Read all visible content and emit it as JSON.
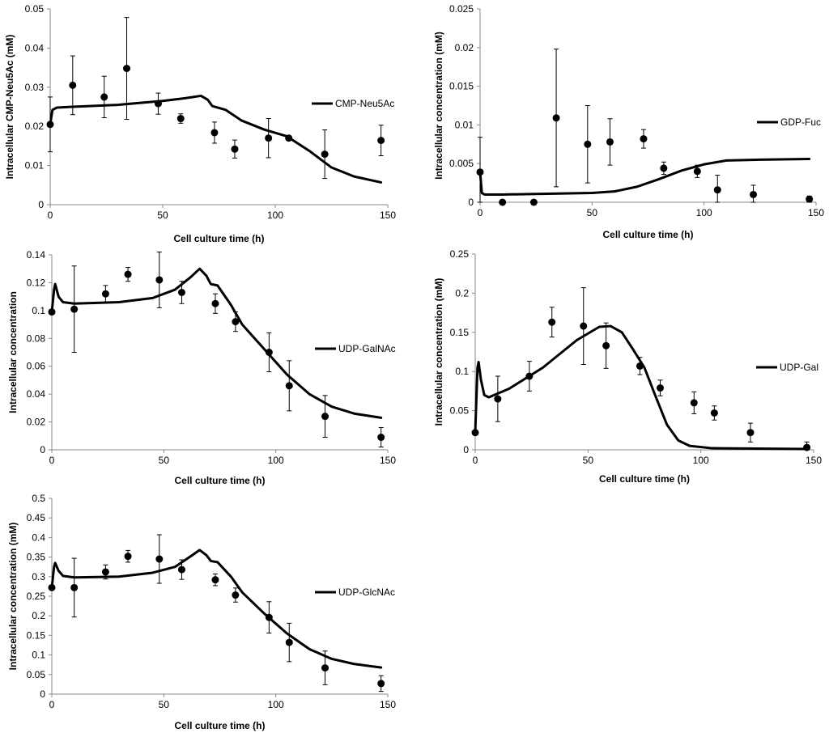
{
  "chart_data": [
    {
      "type": "scatter",
      "title": "",
      "xlabel": "Cell culture time (h)",
      "ylabel": "Intracellular CMP-Neu5Ac (mM)",
      "xlim": [
        0,
        150
      ],
      "ylim": [
        0,
        0.05
      ],
      "xticks": [
        0,
        50,
        100,
        150
      ],
      "xtick_labels": [
        "0",
        "50",
        "100",
        "150"
      ],
      "yticks": [
        0,
        0.01,
        0.02,
        0.03,
        0.04,
        0.05
      ],
      "ytick_labels": [
        "0",
        "0.01",
        "0.02",
        "0.03",
        "0.04",
        "0.05"
      ],
      "legend": "CMP-Neu5Ac",
      "legend_position": "right",
      "points": [
        {
          "x": 0,
          "y": 0.0205,
          "err": 0.007
        },
        {
          "x": 10,
          "y": 0.0305,
          "err": 0.0075
        },
        {
          "x": 24,
          "y": 0.0275,
          "err": 0.0053
        },
        {
          "x": 34,
          "y": 0.0348,
          "err": 0.013
        },
        {
          "x": 48,
          "y": 0.0258,
          "err": 0.0027
        },
        {
          "x": 58,
          "y": 0.022,
          "err": 0.0012
        },
        {
          "x": 73,
          "y": 0.0184,
          "err": 0.0027
        },
        {
          "x": 82,
          "y": 0.0142,
          "err": 0.0023
        },
        {
          "x": 97,
          "y": 0.017,
          "err": 0.005
        },
        {
          "x": 106,
          "y": 0.017,
          "err": 0.0005
        },
        {
          "x": 122,
          "y": 0.0129,
          "err": 0.0062
        },
        {
          "x": 147,
          "y": 0.0164,
          "err": 0.0039
        }
      ],
      "model": [
        [
          0,
          0.0205
        ],
        [
          1,
          0.0242
        ],
        [
          3,
          0.0248
        ],
        [
          10,
          0.025
        ],
        [
          30,
          0.0255
        ],
        [
          50,
          0.0265
        ],
        [
          60,
          0.0272
        ],
        [
          67,
          0.0278
        ],
        [
          70,
          0.0268
        ],
        [
          72,
          0.0252
        ],
        [
          78,
          0.0242
        ],
        [
          85,
          0.0215
        ],
        [
          95,
          0.0192
        ],
        [
          105,
          0.0175
        ],
        [
          115,
          0.0138
        ],
        [
          125,
          0.0095
        ],
        [
          135,
          0.0072
        ],
        [
          147,
          0.0057
        ]
      ]
    },
    {
      "type": "scatter",
      "title": "",
      "xlabel": "Cell culture time (h)",
      "ylabel": "Intracellular concentration (mM)",
      "xlim": [
        0,
        150
      ],
      "ylim": [
        0,
        0.025
      ],
      "xticks": [
        0,
        50,
        100,
        150
      ],
      "xtick_labels": [
        "0",
        "50",
        "100",
        "150"
      ],
      "yticks": [
        0,
        0.005,
        0.01,
        0.015,
        0.02,
        0.025
      ],
      "ytick_labels": [
        "0",
        "0.005",
        "0.01",
        "0.015",
        "0.02",
        "0.025"
      ],
      "legend": "GDP-Fuc",
      "legend_position": "right",
      "points": [
        {
          "x": 0,
          "y": 0.0039,
          "err": 0.0045
        },
        {
          "x": 10,
          "y": 0.0,
          "err": 0
        },
        {
          "x": 24,
          "y": 0.0,
          "err": 0
        },
        {
          "x": 34,
          "y": 0.0109,
          "err": 0.0089
        },
        {
          "x": 48,
          "y": 0.0075,
          "err": 0.005
        },
        {
          "x": 58,
          "y": 0.0078,
          "err": 0.003
        },
        {
          "x": 73,
          "y": 0.0082,
          "err": 0.0012
        },
        {
          "x": 82,
          "y": 0.0044,
          "err": 0.0008
        },
        {
          "x": 97,
          "y": 0.004,
          "err": 0.0008
        },
        {
          "x": 106,
          "y": 0.0016,
          "err": 0.0019
        },
        {
          "x": 122,
          "y": 0.001,
          "err": 0.0012
        },
        {
          "x": 147,
          "y": 0.0004,
          "err": 0.0004
        }
      ],
      "model": [
        [
          0,
          0.0039
        ],
        [
          0.8,
          0.0012
        ],
        [
          2,
          0.001
        ],
        [
          10,
          0.001
        ],
        [
          30,
          0.0011
        ],
        [
          50,
          0.0012
        ],
        [
          60,
          0.0014
        ],
        [
          70,
          0.002
        ],
        [
          80,
          0.003
        ],
        [
          90,
          0.0041
        ],
        [
          100,
          0.0049
        ],
        [
          110,
          0.0054
        ],
        [
          125,
          0.0055
        ],
        [
          147,
          0.0056
        ]
      ]
    },
    {
      "type": "scatter",
      "title": "",
      "xlabel": "Cell culture time (h)",
      "ylabel": "Intracellular concentration",
      "xlim": [
        0,
        150
      ],
      "ylim": [
        0,
        0.14
      ],
      "xticks": [
        0,
        50,
        100,
        150
      ],
      "xtick_labels": [
        "0",
        "50",
        "100",
        "150"
      ],
      "yticks": [
        0,
        0.02,
        0.04,
        0.06,
        0.08,
        0.1,
        0.12,
        0.14
      ],
      "ytick_labels": [
        "0",
        "0.02",
        "0.04",
        "0.06",
        "0.08",
        "0.1",
        "0.12",
        "0.14"
      ],
      "legend": "UDP-GalNAc",
      "legend_position": "right",
      "points": [
        {
          "x": 0,
          "y": 0.099,
          "err": 0
        },
        {
          "x": 10,
          "y": 0.101,
          "err": 0.031
        },
        {
          "x": 24,
          "y": 0.112,
          "err": 0.006
        },
        {
          "x": 34,
          "y": 0.126,
          "err": 0.005
        },
        {
          "x": 48,
          "y": 0.122,
          "err": 0.02
        },
        {
          "x": 58,
          "y": 0.113,
          "err": 0.008
        },
        {
          "x": 73,
          "y": 0.105,
          "err": 0.007
        },
        {
          "x": 82,
          "y": 0.092,
          "err": 0.007
        },
        {
          "x": 97,
          "y": 0.07,
          "err": 0.014
        },
        {
          "x": 106,
          "y": 0.046,
          "err": 0.018
        },
        {
          "x": 122,
          "y": 0.024,
          "err": 0.015
        },
        {
          "x": 147,
          "y": 0.009,
          "err": 0.007
        }
      ],
      "model": [
        [
          0,
          0.099
        ],
        [
          1,
          0.115
        ],
        [
          1.5,
          0.119
        ],
        [
          3,
          0.11
        ],
        [
          5,
          0.106
        ],
        [
          10,
          0.105
        ],
        [
          30,
          0.106
        ],
        [
          45,
          0.109
        ],
        [
          55,
          0.115
        ],
        [
          62,
          0.124
        ],
        [
          66,
          0.13
        ],
        [
          69,
          0.125
        ],
        [
          71,
          0.119
        ],
        [
          74,
          0.118
        ],
        [
          80,
          0.104
        ],
        [
          85,
          0.09
        ],
        [
          95,
          0.072
        ],
        [
          105,
          0.054
        ],
        [
          115,
          0.04
        ],
        [
          125,
          0.031
        ],
        [
          135,
          0.026
        ],
        [
          147,
          0.023
        ]
      ]
    },
    {
      "type": "scatter",
      "title": "",
      "xlabel": "Cell culture time (h)",
      "ylabel": "Intracellular concentration (mM)",
      "xlim": [
        0,
        150
      ],
      "ylim": [
        0,
        0.25
      ],
      "xticks": [
        0,
        50,
        100,
        150
      ],
      "xtick_labels": [
        "0",
        "50",
        "100",
        "150"
      ],
      "yticks": [
        0,
        0.05,
        0.1,
        0.15,
        0.2,
        0.25
      ],
      "ytick_labels": [
        "0",
        "0.05",
        "0.1",
        "0.15",
        "0.2",
        "0.25"
      ],
      "legend": "UDP-Gal",
      "legend_position": "right",
      "points": [
        {
          "x": 0,
          "y": 0.022,
          "err": 0
        },
        {
          "x": 10,
          "y": 0.065,
          "err": 0.029
        },
        {
          "x": 24,
          "y": 0.094,
          "err": 0.019
        },
        {
          "x": 34,
          "y": 0.163,
          "err": 0.019
        },
        {
          "x": 48,
          "y": 0.158,
          "err": 0.049
        },
        {
          "x": 58,
          "y": 0.133,
          "err": 0.029
        },
        {
          "x": 73,
          "y": 0.107,
          "err": 0.011
        },
        {
          "x": 82,
          "y": 0.079,
          "err": 0.01
        },
        {
          "x": 97,
          "y": 0.06,
          "err": 0.014
        },
        {
          "x": 106,
          "y": 0.047,
          "err": 0.009
        },
        {
          "x": 122,
          "y": 0.022,
          "err": 0.012
        },
        {
          "x": 147,
          "y": 0.003,
          "err": 0.007
        }
      ],
      "model": [
        [
          0,
          0.022
        ],
        [
          1,
          0.105
        ],
        [
          1.5,
          0.112
        ],
        [
          2.5,
          0.09
        ],
        [
          4,
          0.07
        ],
        [
          6,
          0.067
        ],
        [
          15,
          0.078
        ],
        [
          30,
          0.105
        ],
        [
          45,
          0.14
        ],
        [
          55,
          0.157
        ],
        [
          60,
          0.158
        ],
        [
          65,
          0.15
        ],
        [
          70,
          0.128
        ],
        [
          75,
          0.105
        ],
        [
          80,
          0.068
        ],
        [
          85,
          0.032
        ],
        [
          90,
          0.012
        ],
        [
          95,
          0.005
        ],
        [
          105,
          0.002
        ],
        [
          147,
          0.001
        ]
      ]
    },
    {
      "type": "scatter",
      "title": "",
      "xlabel": "Cell culture time (h)",
      "ylabel": "Intracellular concentration (mM)",
      "xlim": [
        0,
        150
      ],
      "ylim": [
        0,
        0.5
      ],
      "xticks": [
        0,
        50,
        100,
        150
      ],
      "xtick_labels": [
        "0",
        "50",
        "100",
        "150"
      ],
      "yticks": [
        0,
        0.05,
        0.1,
        0.15,
        0.2,
        0.25,
        0.3,
        0.35,
        0.4,
        0.45,
        0.5
      ],
      "ytick_labels": [
        "0",
        "0.05",
        "0.1",
        "0.15",
        "0.2",
        "0.25",
        "0.3",
        "0.35",
        "0.4",
        "0.45",
        "0.5"
      ],
      "legend": "UDP-GlcNAc",
      "legend_position": "right",
      "points": [
        {
          "x": 0,
          "y": 0.272,
          "err": 0
        },
        {
          "x": 10,
          "y": 0.272,
          "err": 0.075
        },
        {
          "x": 24,
          "y": 0.312,
          "err": 0.018
        },
        {
          "x": 34,
          "y": 0.352,
          "err": 0.015
        },
        {
          "x": 48,
          "y": 0.345,
          "err": 0.062
        },
        {
          "x": 58,
          "y": 0.318,
          "err": 0.025
        },
        {
          "x": 73,
          "y": 0.292,
          "err": 0.015
        },
        {
          "x": 82,
          "y": 0.253,
          "err": 0.018
        },
        {
          "x": 97,
          "y": 0.196,
          "err": 0.04
        },
        {
          "x": 106,
          "y": 0.132,
          "err": 0.049
        },
        {
          "x": 122,
          "y": 0.067,
          "err": 0.043
        },
        {
          "x": 147,
          "y": 0.027,
          "err": 0.02
        }
      ],
      "model": [
        [
          0,
          0.272
        ],
        [
          1,
          0.325
        ],
        [
          1.5,
          0.335
        ],
        [
          3,
          0.315
        ],
        [
          5,
          0.302
        ],
        [
          10,
          0.298
        ],
        [
          30,
          0.3
        ],
        [
          45,
          0.31
        ],
        [
          55,
          0.325
        ],
        [
          62,
          0.352
        ],
        [
          66,
          0.368
        ],
        [
          69,
          0.355
        ],
        [
          71,
          0.34
        ],
        [
          74,
          0.337
        ],
        [
          80,
          0.3
        ],
        [
          85,
          0.26
        ],
        [
          95,
          0.205
        ],
        [
          105,
          0.155
        ],
        [
          115,
          0.115
        ],
        [
          125,
          0.09
        ],
        [
          135,
          0.077
        ],
        [
          147,
          0.068
        ]
      ]
    }
  ]
}
